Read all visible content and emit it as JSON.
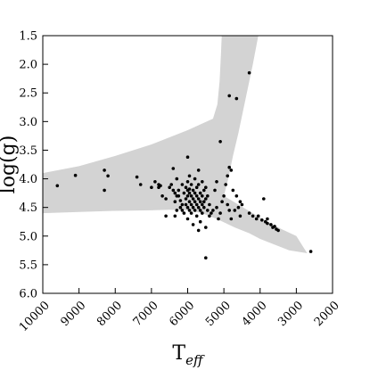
{
  "chart_data": {
    "type": "scatter",
    "title": "",
    "xlabel": "T",
    "xlabel_sub": "eff",
    "ylabel": "log(g)",
    "xlim": [
      10000,
      2000
    ],
    "ylim": [
      1.5,
      6.0
    ],
    "x_ticks": [
      10000,
      9000,
      8000,
      7000,
      6000,
      5000,
      4000,
      3000,
      2000
    ],
    "y_ticks": [
      1.5,
      2.0,
      2.5,
      3.0,
      3.5,
      4.0,
      4.5,
      5.0,
      5.5,
      6.0
    ],
    "y_tick_labels": [
      "1.5",
      "2.0",
      "2.5",
      "3.0",
      "3.5",
      "4.0",
      "4.5",
      "5.0",
      "5.5",
      "6.0"
    ],
    "grid": false,
    "legend": "none",
    "colors": {
      "points": "#000000",
      "tracks": "#d3d3d3"
    },
    "background_band": {
      "name": "",
      "upper": [
        [
          10000,
          3.9
        ],
        [
          9000,
          3.78
        ],
        [
          8000,
          3.6
        ],
        [
          7000,
          3.4
        ],
        [
          6000,
          3.15
        ],
        [
          5300,
          2.95
        ],
        [
          5180,
          2.7
        ],
        [
          5120,
          2.3
        ],
        [
          5080,
          1.8
        ],
        [
          5060,
          1.5
        ],
        [
          4050,
          1.5
        ],
        [
          4200,
          2.0
        ],
        [
          4400,
          2.6
        ],
        [
          4600,
          3.2
        ],
        [
          4750,
          3.6
        ],
        [
          4880,
          4.0
        ],
        [
          5000,
          4.3
        ],
        [
          4600,
          4.45
        ],
        [
          4200,
          4.6
        ],
        [
          3800,
          4.75
        ],
        [
          3400,
          4.88
        ],
        [
          3000,
          5.0
        ],
        [
          2800,
          5.2
        ],
        [
          2700,
          5.3
        ]
      ],
      "lower": [
        [
          10000,
          4.6
        ],
        [
          9000,
          4.58
        ],
        [
          8000,
          4.56
        ],
        [
          7000,
          4.55
        ],
        [
          6500,
          4.54
        ],
        [
          6000,
          4.55
        ],
        [
          5600,
          4.6
        ],
        [
          5200,
          4.7
        ],
        [
          4700,
          4.85
        ],
        [
          4300,
          4.95
        ],
        [
          4000,
          5.05
        ],
        [
          3600,
          5.15
        ],
        [
          3200,
          5.25
        ],
        [
          2700,
          5.3
        ]
      ]
    },
    "series": [
      {
        "points": [
          [
            9600,
            4.12
          ],
          [
            9100,
            3.94
          ],
          [
            8300,
            3.85
          ],
          [
            8200,
            3.95
          ],
          [
            8300,
            4.2
          ],
          [
            7400,
            3.97
          ],
          [
            7300,
            4.1
          ],
          [
            7000,
            4.15
          ],
          [
            6900,
            4.05
          ],
          [
            6800,
            4.1
          ],
          [
            6750,
            4.12
          ],
          [
            6700,
            4.3
          ],
          [
            6600,
            4.35
          ],
          [
            6600,
            4.65
          ],
          [
            6500,
            4.15
          ],
          [
            6450,
            4.1
          ],
          [
            6400,
            4.2
          ],
          [
            6400,
            3.82
          ],
          [
            6350,
            4.25
          ],
          [
            6350,
            4.4
          ],
          [
            6300,
            4.3
          ],
          [
            6300,
            4.0
          ],
          [
            6300,
            4.55
          ],
          [
            6250,
            4.2
          ],
          [
            6250,
            4.3
          ],
          [
            6200,
            4.38
          ],
          [
            6200,
            4.5
          ],
          [
            6150,
            4.1
          ],
          [
            6150,
            4.45
          ],
          [
            6100,
            4.25
          ],
          [
            6100,
            4.6
          ],
          [
            6050,
            4.15
          ],
          [
            6050,
            4.35
          ],
          [
            6050,
            4.45
          ],
          [
            6000,
            4.05
          ],
          [
            6000,
            4.2
          ],
          [
            6000,
            4.3
          ],
          [
            6000,
            4.5
          ],
          [
            6000,
            4.7
          ],
          [
            5950,
            3.95
          ],
          [
            5950,
            4.25
          ],
          [
            5950,
            4.4
          ],
          [
            5950,
            4.55
          ],
          [
            5900,
            4.1
          ],
          [
            5900,
            4.3
          ],
          [
            5900,
            4.45
          ],
          [
            5900,
            4.6
          ],
          [
            5850,
            4.2
          ],
          [
            5850,
            4.35
          ],
          [
            5850,
            4.5
          ],
          [
            5850,
            4.8
          ],
          [
            5800,
            4.0
          ],
          [
            5800,
            4.25
          ],
          [
            5800,
            4.4
          ],
          [
            5800,
            4.55
          ],
          [
            5750,
            4.15
          ],
          [
            5750,
            4.3
          ],
          [
            5750,
            4.45
          ],
          [
            5750,
            4.65
          ],
          [
            5700,
            3.85
          ],
          [
            5700,
            4.1
          ],
          [
            5700,
            4.35
          ],
          [
            5700,
            4.5
          ],
          [
            5700,
            4.9
          ],
          [
            5650,
            4.25
          ],
          [
            5650,
            4.4
          ],
          [
            5650,
            4.55
          ],
          [
            5650,
            4.75
          ],
          [
            5600,
            4.05
          ],
          [
            5600,
            4.3
          ],
          [
            5600,
            4.45
          ],
          [
            5600,
            4.6
          ],
          [
            5550,
            4.2
          ],
          [
            5550,
            4.4
          ],
          [
            5550,
            4.5
          ],
          [
            5500,
            4.15
          ],
          [
            5500,
            4.35
          ],
          [
            5500,
            4.85
          ],
          [
            5450,
            4.3
          ],
          [
            5450,
            4.55
          ],
          [
            5400,
            4.45
          ],
          [
            5400,
            4.65
          ],
          [
            5350,
            4.6
          ],
          [
            5300,
            4.55
          ],
          [
            5250,
            4.2
          ],
          [
            5200,
            4.5
          ],
          [
            5150,
            4.7
          ],
          [
            5100,
            4.6
          ],
          [
            5050,
            4.4
          ],
          [
            5000,
            4.3
          ],
          [
            4950,
            4.1
          ],
          [
            4900,
            3.95
          ],
          [
            4900,
            4.45
          ],
          [
            4850,
            3.8
          ],
          [
            4850,
            4.55
          ],
          [
            4800,
            3.85
          ],
          [
            4800,
            4.7
          ],
          [
            4750,
            4.2
          ],
          [
            4700,
            4.55
          ],
          [
            4650,
            4.3
          ],
          [
            4600,
            4.5
          ],
          [
            4550,
            4.4
          ],
          [
            4550,
            4.65
          ],
          [
            4500,
            4.45
          ],
          [
            4300,
            4.6
          ],
          [
            4200,
            4.65
          ],
          [
            4100,
            4.7
          ],
          [
            4050,
            4.65
          ],
          [
            3950,
            4.72
          ],
          [
            3900,
            4.35
          ],
          [
            3850,
            4.75
          ],
          [
            3800,
            4.7
          ],
          [
            3700,
            4.8
          ],
          [
            3650,
            4.85
          ],
          [
            3600,
            4.83
          ],
          [
            3550,
            4.88
          ],
          [
            3500,
            4.9
          ],
          [
            6000,
            3.62
          ],
          [
            5100,
            3.35
          ],
          [
            4850,
            2.55
          ],
          [
            4650,
            2.6
          ],
          [
            4300,
            2.15
          ],
          [
            3800,
            4.78
          ],
          [
            2600,
            5.27
          ],
          [
            5500,
            5.38
          ],
          [
            6350,
            4.65
          ],
          [
            6800,
            4.15
          ],
          [
            5200,
            4.05
          ],
          [
            5950,
            4.18
          ],
          [
            6150,
            4.55
          ]
        ]
      }
    ]
  }
}
